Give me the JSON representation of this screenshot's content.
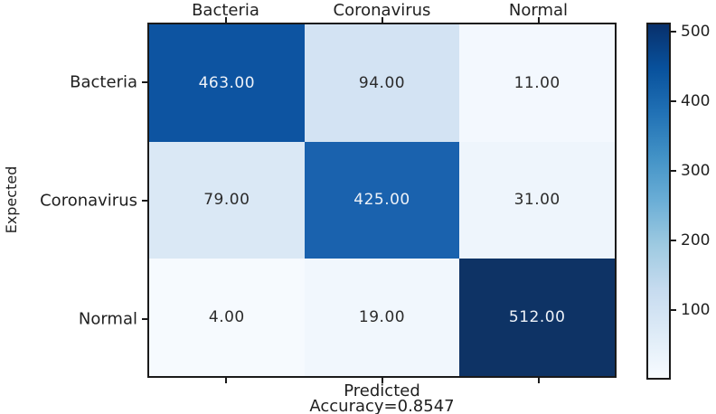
{
  "figure": {
    "background": "#ffffff",
    "border_color": "#1a1a1a",
    "text_color": "#1f1f1f"
  },
  "chart_data": {
    "type": "heatmap",
    "subtype": "confusion-matrix",
    "title": "",
    "xlabel": "Predicted",
    "xlabel_secondary": "Accuracy=0.8547",
    "ylabel": "Expected",
    "x_axis_labels_position": "top",
    "x_categories": [
      "Bacteria",
      "Coronavirus",
      "Normal"
    ],
    "y_categories": [
      "Bacteria",
      "Coronavirus",
      "Normal"
    ],
    "values": [
      [
        463,
        94,
        11
      ],
      [
        79,
        425,
        31
      ],
      [
        4,
        19,
        512
      ]
    ],
    "cell_labels": [
      [
        "463.00",
        "94.00",
        "11.00"
      ],
      [
        "79.00",
        "425.00",
        "31.00"
      ],
      [
        "4.00",
        "19.00",
        "512.00"
      ]
    ],
    "cell_colors": [
      [
        "#0d54a1",
        "#d3e3f3",
        "#f3f8fe"
      ],
      [
        "#dae8f5",
        "#1a62ae",
        "#eef5fc"
      ],
      [
        "#f6fafe",
        "#f1f7fd",
        "#0e3365"
      ]
    ],
    "cell_text_colors": [
      [
        "#eef2f8",
        "#2b2b2b",
        "#2b2b2b"
      ],
      [
        "#2b2b2b",
        "#eef2f8",
        "#2b2b2b"
      ],
      [
        "#2b2b2b",
        "#2b2b2b",
        "#eef2f8"
      ]
    ],
    "accuracy": 0.8547,
    "grid": false,
    "colormap": "Blues",
    "colorbar": {
      "position": "right",
      "vmin": 0,
      "vmax": 513,
      "tick_labels": [
        "100",
        "200",
        "300",
        "400",
        "500"
      ],
      "tick_values": [
        100,
        200,
        300,
        400,
        500
      ],
      "gradient_stops": [
        "#f7fbff",
        "#deebf7",
        "#c6dbef",
        "#9ecae1",
        "#6baed6",
        "#4292c6",
        "#2171b5",
        "#08519c",
        "#08306b"
      ]
    }
  }
}
